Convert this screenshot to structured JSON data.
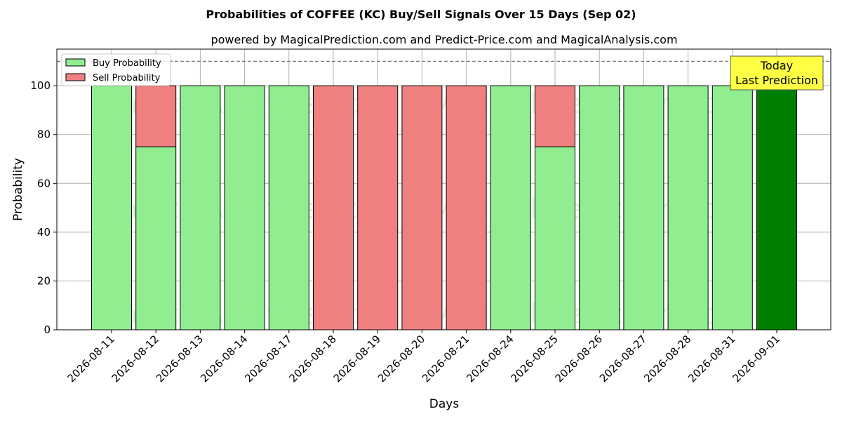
{
  "chart_data": {
    "type": "bar",
    "stacked": true,
    "title": "Probabilities of COFFEE (KC) Buy/Sell Signals Over 15 Days (Sep 02)",
    "subtitle": "powered by MagicalPrediction.com and Predict-Price.com and MagicalAnalysis.com",
    "xlabel": "Days",
    "ylabel": "Probability",
    "ylim": [
      0,
      115
    ],
    "yticks": [
      0,
      20,
      40,
      60,
      80,
      100
    ],
    "reference_line": 110,
    "grid": true,
    "legend_position": "top-left",
    "categories": [
      "2026-08-11",
      "2026-08-12",
      "2026-08-13",
      "2026-08-14",
      "2026-08-17",
      "2026-08-18",
      "2026-08-19",
      "2026-08-20",
      "2026-08-21",
      "2026-08-24",
      "2026-08-25",
      "2026-08-26",
      "2026-08-27",
      "2026-08-28",
      "2026-08-31",
      "2026-09-01"
    ],
    "series": [
      {
        "name": "Buy Probability",
        "color": "#90ee90",
        "values": [
          100,
          75,
          100,
          100,
          100,
          0,
          0,
          0,
          0,
          100,
          75,
          100,
          100,
          100,
          100,
          100
        ]
      },
      {
        "name": "Sell Probability",
        "color": "#f08080",
        "values": [
          0,
          25,
          0,
          0,
          0,
          100,
          100,
          100,
          100,
          0,
          25,
          0,
          0,
          0,
          0,
          0
        ]
      }
    ],
    "highlight": {
      "index": 15,
      "color": "#008000"
    },
    "annotation": {
      "line1": "Today",
      "line2": "Last Prediction",
      "color": "#ffff44"
    },
    "watermarks": [
      "MagicalAnalysis.com",
      "MagicalPrediction.com"
    ]
  }
}
